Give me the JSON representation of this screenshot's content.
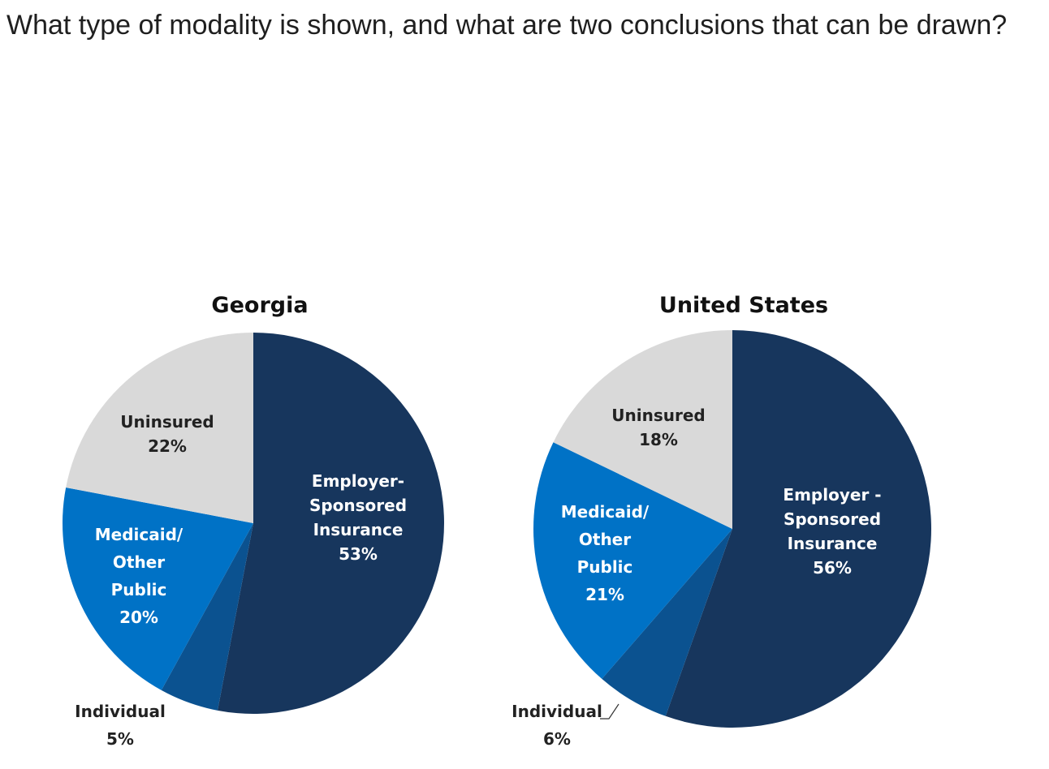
{
  "question": {
    "text": "What type of modality is shown, and what are two conclusions that can be drawn?"
  },
  "colors": {
    "employer": "#17365d",
    "individual": "#0b5290",
    "medicaid": "#0072c6",
    "uninsured": "#d9d9d9"
  },
  "chart_data": [
    {
      "type": "pie",
      "title": "Georgia",
      "categories": [
        "Employer-Sponsored Insurance",
        "Individual",
        "Medicaid/Other Public",
        "Uninsured"
      ],
      "values": [
        53,
        5,
        20,
        22
      ],
      "labels": [
        [
          "Employer-",
          "Sponsored",
          "Insurance",
          "53%"
        ],
        [
          "Individual",
          "5%"
        ],
        [
          "Medicaid/",
          "Other",
          "Public",
          "20%"
        ],
        [
          "Uninsured",
          "22%"
        ]
      ]
    },
    {
      "type": "pie",
      "title": "United States",
      "categories": [
        "Employer-Sponsored Insurance",
        "Individual",
        "Medicaid/Other Public",
        "Uninsured"
      ],
      "values": [
        56,
        6,
        21,
        18
      ],
      "labels": [
        [
          "Employer -",
          "Sponsored",
          "Insurance",
          "56%"
        ],
        [
          "Individual",
          "6%"
        ],
        [
          "Medicaid/",
          "Other",
          "Public",
          "21%"
        ],
        [
          "Uninsured",
          "18%"
        ]
      ]
    }
  ]
}
